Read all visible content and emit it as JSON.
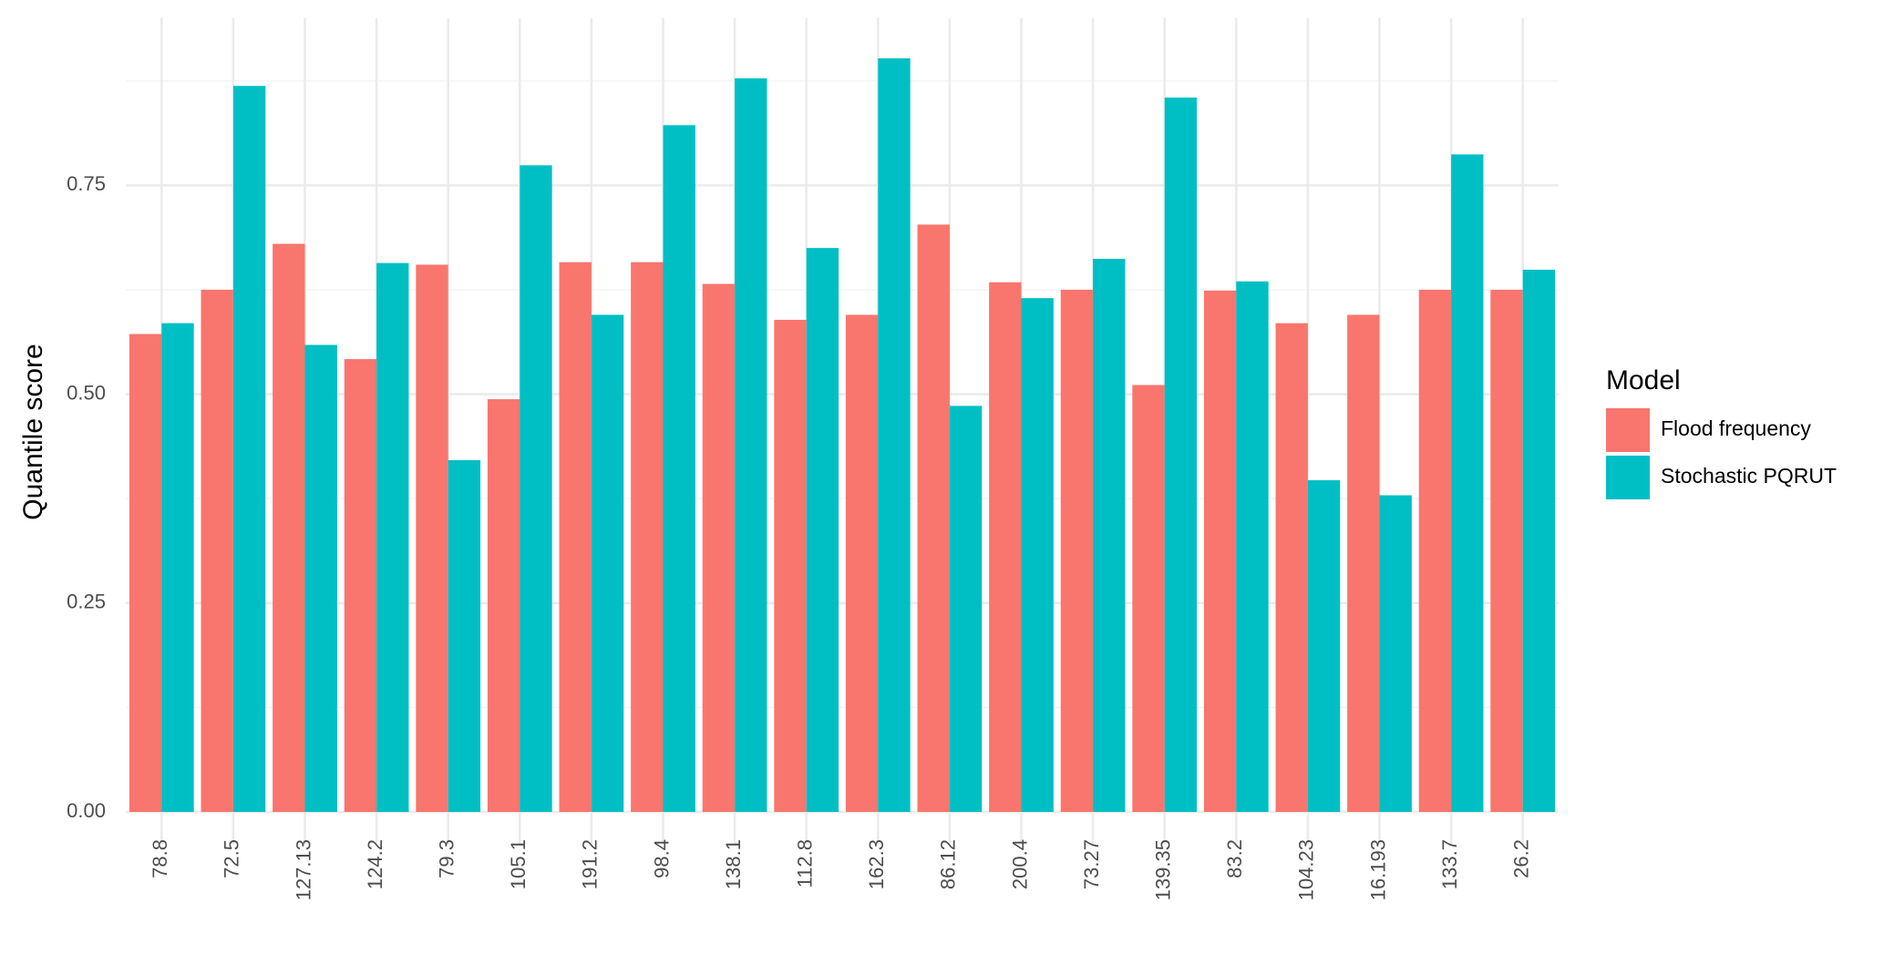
{
  "chart_data": {
    "type": "bar",
    "y_label": "Quantile score",
    "legend_title": "Model",
    "categories": [
      "78.8",
      "72.5",
      "127.13",
      "124.2",
      "79.3",
      "105.1",
      "191.2",
      "98.4",
      "138.1",
      "112.8",
      "162.3",
      "86.12",
      "200.4",
      "73.27",
      "139.35",
      "83.2",
      "104.23",
      "16.193",
      "133.7",
      "26.2"
    ],
    "series": [
      {
        "name": "Flood frequency",
        "color": "#f8766d",
        "values": [
          0.572,
          0.625,
          0.68,
          0.542,
          0.655,
          0.494,
          0.658,
          0.658,
          0.632,
          0.589,
          0.595,
          0.703,
          0.634,
          0.625,
          0.511,
          0.624,
          0.585,
          0.595,
          0.625,
          0.625
        ]
      },
      {
        "name": "Stochastic PQRUT",
        "color": "#00bfc4",
        "values": [
          0.585,
          0.869,
          0.559,
          0.657,
          0.421,
          0.774,
          0.595,
          0.822,
          0.878,
          0.675,
          0.902,
          0.486,
          0.615,
          0.662,
          0.855,
          0.635,
          0.397,
          0.379,
          0.787,
          0.649
        ]
      }
    ],
    "ylim": [
      0,
      0.95
    ],
    "yticks": [
      {
        "value": 0,
        "label": "0.00"
      },
      {
        "value": 0.25,
        "label": "0.25"
      },
      {
        "value": 0.5,
        "label": "0.50"
      },
      {
        "value": 0.75,
        "label": "0.75"
      }
    ],
    "grid": true,
    "legend": "right"
  }
}
